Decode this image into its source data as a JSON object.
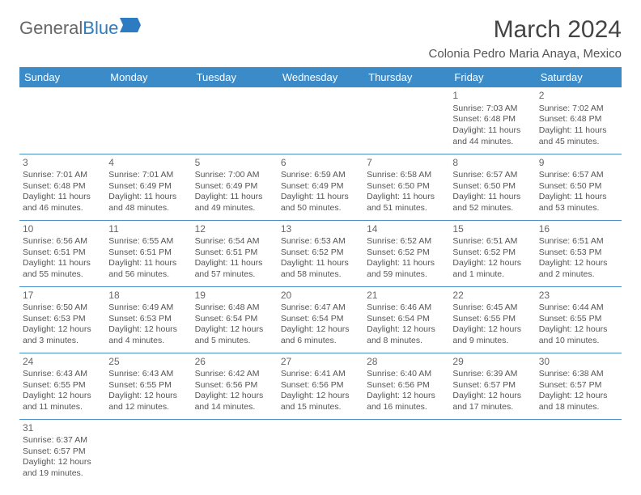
{
  "logo": {
    "part1": "General",
    "part2": "Blue"
  },
  "title": "March 2024",
  "location": "Colonia Pedro Maria Anaya, Mexico",
  "header_color": "#3b8bc9",
  "border_color": "#4a90c7",
  "weekdays": [
    "Sunday",
    "Monday",
    "Tuesday",
    "Wednesday",
    "Thursday",
    "Friday",
    "Saturday"
  ],
  "weeks": [
    [
      null,
      null,
      null,
      null,
      null,
      {
        "n": "1",
        "sr": "Sunrise: 7:03 AM",
        "ss": "Sunset: 6:48 PM",
        "d1": "Daylight: 11 hours",
        "d2": "and 44 minutes."
      },
      {
        "n": "2",
        "sr": "Sunrise: 7:02 AM",
        "ss": "Sunset: 6:48 PM",
        "d1": "Daylight: 11 hours",
        "d2": "and 45 minutes."
      }
    ],
    [
      {
        "n": "3",
        "sr": "Sunrise: 7:01 AM",
        "ss": "Sunset: 6:48 PM",
        "d1": "Daylight: 11 hours",
        "d2": "and 46 minutes."
      },
      {
        "n": "4",
        "sr": "Sunrise: 7:01 AM",
        "ss": "Sunset: 6:49 PM",
        "d1": "Daylight: 11 hours",
        "d2": "and 48 minutes."
      },
      {
        "n": "5",
        "sr": "Sunrise: 7:00 AM",
        "ss": "Sunset: 6:49 PM",
        "d1": "Daylight: 11 hours",
        "d2": "and 49 minutes."
      },
      {
        "n": "6",
        "sr": "Sunrise: 6:59 AM",
        "ss": "Sunset: 6:49 PM",
        "d1": "Daylight: 11 hours",
        "d2": "and 50 minutes."
      },
      {
        "n": "7",
        "sr": "Sunrise: 6:58 AM",
        "ss": "Sunset: 6:50 PM",
        "d1": "Daylight: 11 hours",
        "d2": "and 51 minutes."
      },
      {
        "n": "8",
        "sr": "Sunrise: 6:57 AM",
        "ss": "Sunset: 6:50 PM",
        "d1": "Daylight: 11 hours",
        "d2": "and 52 minutes."
      },
      {
        "n": "9",
        "sr": "Sunrise: 6:57 AM",
        "ss": "Sunset: 6:50 PM",
        "d1": "Daylight: 11 hours",
        "d2": "and 53 minutes."
      }
    ],
    [
      {
        "n": "10",
        "sr": "Sunrise: 6:56 AM",
        "ss": "Sunset: 6:51 PM",
        "d1": "Daylight: 11 hours",
        "d2": "and 55 minutes."
      },
      {
        "n": "11",
        "sr": "Sunrise: 6:55 AM",
        "ss": "Sunset: 6:51 PM",
        "d1": "Daylight: 11 hours",
        "d2": "and 56 minutes."
      },
      {
        "n": "12",
        "sr": "Sunrise: 6:54 AM",
        "ss": "Sunset: 6:51 PM",
        "d1": "Daylight: 11 hours",
        "d2": "and 57 minutes."
      },
      {
        "n": "13",
        "sr": "Sunrise: 6:53 AM",
        "ss": "Sunset: 6:52 PM",
        "d1": "Daylight: 11 hours",
        "d2": "and 58 minutes."
      },
      {
        "n": "14",
        "sr": "Sunrise: 6:52 AM",
        "ss": "Sunset: 6:52 PM",
        "d1": "Daylight: 11 hours",
        "d2": "and 59 minutes."
      },
      {
        "n": "15",
        "sr": "Sunrise: 6:51 AM",
        "ss": "Sunset: 6:52 PM",
        "d1": "Daylight: 12 hours",
        "d2": "and 1 minute."
      },
      {
        "n": "16",
        "sr": "Sunrise: 6:51 AM",
        "ss": "Sunset: 6:53 PM",
        "d1": "Daylight: 12 hours",
        "d2": "and 2 minutes."
      }
    ],
    [
      {
        "n": "17",
        "sr": "Sunrise: 6:50 AM",
        "ss": "Sunset: 6:53 PM",
        "d1": "Daylight: 12 hours",
        "d2": "and 3 minutes."
      },
      {
        "n": "18",
        "sr": "Sunrise: 6:49 AM",
        "ss": "Sunset: 6:53 PM",
        "d1": "Daylight: 12 hours",
        "d2": "and 4 minutes."
      },
      {
        "n": "19",
        "sr": "Sunrise: 6:48 AM",
        "ss": "Sunset: 6:54 PM",
        "d1": "Daylight: 12 hours",
        "d2": "and 5 minutes."
      },
      {
        "n": "20",
        "sr": "Sunrise: 6:47 AM",
        "ss": "Sunset: 6:54 PM",
        "d1": "Daylight: 12 hours",
        "d2": "and 6 minutes."
      },
      {
        "n": "21",
        "sr": "Sunrise: 6:46 AM",
        "ss": "Sunset: 6:54 PM",
        "d1": "Daylight: 12 hours",
        "d2": "and 8 minutes."
      },
      {
        "n": "22",
        "sr": "Sunrise: 6:45 AM",
        "ss": "Sunset: 6:55 PM",
        "d1": "Daylight: 12 hours",
        "d2": "and 9 minutes."
      },
      {
        "n": "23",
        "sr": "Sunrise: 6:44 AM",
        "ss": "Sunset: 6:55 PM",
        "d1": "Daylight: 12 hours",
        "d2": "and 10 minutes."
      }
    ],
    [
      {
        "n": "24",
        "sr": "Sunrise: 6:43 AM",
        "ss": "Sunset: 6:55 PM",
        "d1": "Daylight: 12 hours",
        "d2": "and 11 minutes."
      },
      {
        "n": "25",
        "sr": "Sunrise: 6:43 AM",
        "ss": "Sunset: 6:55 PM",
        "d1": "Daylight: 12 hours",
        "d2": "and 12 minutes."
      },
      {
        "n": "26",
        "sr": "Sunrise: 6:42 AM",
        "ss": "Sunset: 6:56 PM",
        "d1": "Daylight: 12 hours",
        "d2": "and 14 minutes."
      },
      {
        "n": "27",
        "sr": "Sunrise: 6:41 AM",
        "ss": "Sunset: 6:56 PM",
        "d1": "Daylight: 12 hours",
        "d2": "and 15 minutes."
      },
      {
        "n": "28",
        "sr": "Sunrise: 6:40 AM",
        "ss": "Sunset: 6:56 PM",
        "d1": "Daylight: 12 hours",
        "d2": "and 16 minutes."
      },
      {
        "n": "29",
        "sr": "Sunrise: 6:39 AM",
        "ss": "Sunset: 6:57 PM",
        "d1": "Daylight: 12 hours",
        "d2": "and 17 minutes."
      },
      {
        "n": "30",
        "sr": "Sunrise: 6:38 AM",
        "ss": "Sunset: 6:57 PM",
        "d1": "Daylight: 12 hours",
        "d2": "and 18 minutes."
      }
    ],
    [
      {
        "n": "31",
        "sr": "Sunrise: 6:37 AM",
        "ss": "Sunset: 6:57 PM",
        "d1": "Daylight: 12 hours",
        "d2": "and 19 minutes."
      },
      null,
      null,
      null,
      null,
      null,
      null
    ]
  ]
}
